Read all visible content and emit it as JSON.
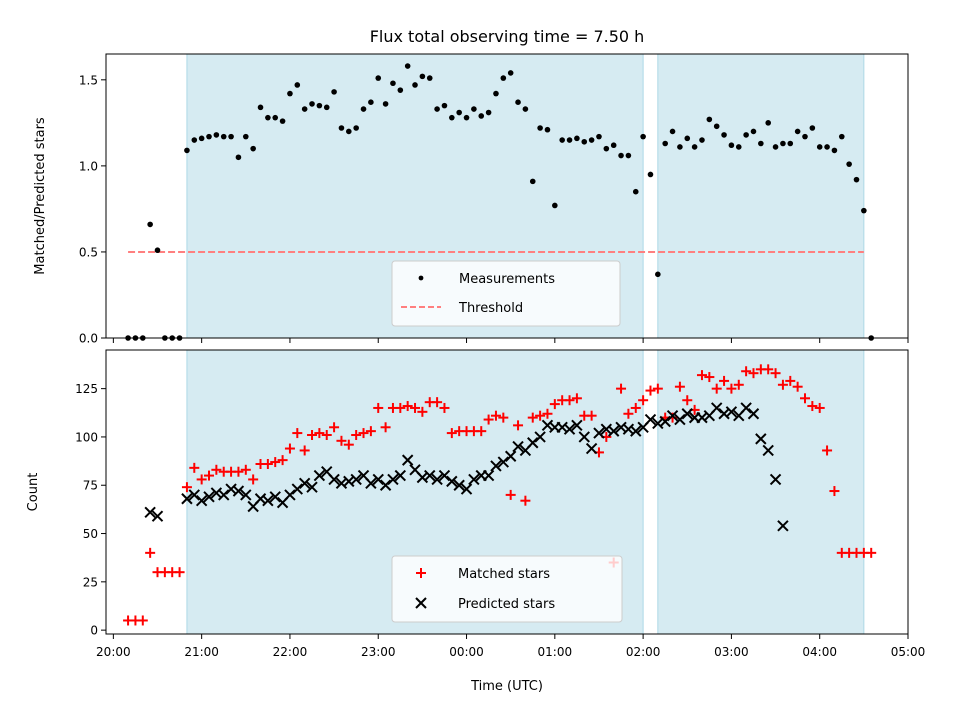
{
  "title": "Flux total observing time = 7.50 h",
  "chart_data": [
    {
      "type": "scatter",
      "ylabel": "Matched/Predicted stars",
      "xlabel": "",
      "ylim": [
        0,
        1.65
      ],
      "yticks": [
        0.0,
        0.5,
        1.0,
        1.5
      ],
      "ytick_labels": [
        "0.0",
        "0.5",
        "1.0",
        "1.5"
      ],
      "legend": "lower center",
      "series": [
        {
          "name": "Measurements",
          "marker": "dot",
          "color": "#000000",
          "x": [
            "20:10",
            "20:15",
            "20:20",
            "20:25",
            "20:30",
            "20:35",
            "20:40",
            "20:45",
            "20:50",
            "20:55",
            "21:00",
            "21:05",
            "21:10",
            "21:15",
            "21:20",
            "21:25",
            "21:30",
            "21:35",
            "21:40",
            "21:45",
            "21:50",
            "21:55",
            "22:00",
            "22:05",
            "22:10",
            "22:15",
            "22:20",
            "22:25",
            "22:30",
            "22:35",
            "22:40",
            "22:45",
            "22:50",
            "22:55",
            "23:00",
            "23:05",
            "23:10",
            "23:15",
            "23:20",
            "23:25",
            "23:30",
            "23:35",
            "23:40",
            "23:45",
            "23:50",
            "23:55",
            "00:00",
            "00:05",
            "00:10",
            "00:15",
            "00:20",
            "00:25",
            "00:30",
            "00:35",
            "00:40",
            "00:45",
            "00:50",
            "00:55",
            "01:00",
            "01:05",
            "01:10",
            "01:15",
            "01:20",
            "01:25",
            "01:30",
            "01:35",
            "01:40",
            "01:45",
            "01:50",
            "01:55",
            "02:00",
            "02:05",
            "02:10",
            "02:15",
            "02:20",
            "02:25",
            "02:30",
            "02:35",
            "02:40",
            "02:45",
            "02:50",
            "02:55",
            "03:00",
            "03:05",
            "03:10",
            "03:15",
            "03:20",
            "03:25",
            "03:30",
            "03:35",
            "03:40",
            "03:45",
            "03:50",
            "03:55",
            "04:00",
            "04:05",
            "04:10",
            "04:15",
            "04:20",
            "04:25",
            "04:30",
            "04:35"
          ],
          "y": [
            0.0,
            0.0,
            0.0,
            0.66,
            0.51,
            0.0,
            0.0,
            0.0,
            1.09,
            1.15,
            1.16,
            1.17,
            1.18,
            1.17,
            1.17,
            1.05,
            1.17,
            1.1,
            1.34,
            1.28,
            1.28,
            1.26,
            1.42,
            1.47,
            1.33,
            1.36,
            1.35,
            1.34,
            1.43,
            1.22,
            1.2,
            1.22,
            1.33,
            1.37,
            1.51,
            1.36,
            1.48,
            1.44,
            1.58,
            1.47,
            1.52,
            1.51,
            1.33,
            1.35,
            1.28,
            1.31,
            1.28,
            1.33,
            1.29,
            1.31,
            1.42,
            1.51,
            1.54,
            1.37,
            1.33,
            0.91,
            1.22,
            1.21,
            0.77,
            1.15,
            1.15,
            1.16,
            1.14,
            1.15,
            1.17,
            1.1,
            1.12,
            1.06,
            1.06,
            0.85,
            1.17,
            0.95,
            0.37,
            1.13,
            1.2,
            1.11,
            1.16,
            1.11,
            1.15,
            1.27,
            1.23,
            1.18,
            1.12,
            1.11,
            1.18,
            1.2,
            1.13,
            1.25,
            1.11,
            1.13,
            1.13,
            1.2,
            1.17,
            1.22,
            1.11,
            1.11,
            1.09,
            1.17,
            1.01,
            0.92,
            0.74,
            0.0
          ]
        },
        {
          "name": "Threshold",
          "marker": "dashed-line",
          "color": "#ff7f7f",
          "x": [
            "20:10",
            "04:30"
          ],
          "y": [
            0.5,
            0.5
          ]
        }
      ]
    },
    {
      "type": "scatter",
      "ylabel": "Count",
      "xlabel": "Time (UTC)",
      "ylim": [
        -2,
        145
      ],
      "yticks": [
        0,
        25,
        50,
        75,
        100,
        125
      ],
      "ytick_labels": [
        "0",
        "25",
        "50",
        "75",
        "100",
        "125"
      ],
      "legend": "lower center",
      "series": [
        {
          "name": "Matched stars",
          "marker": "plus",
          "color": "#ff0000",
          "x": [
            "20:10",
            "20:15",
            "20:20",
            "20:25",
            "20:30",
            "20:35",
            "20:40",
            "20:45",
            "20:50",
            "20:55",
            "21:00",
            "21:05",
            "21:10",
            "21:15",
            "21:20",
            "21:25",
            "21:30",
            "21:35",
            "21:40",
            "21:45",
            "21:50",
            "21:55",
            "22:00",
            "22:05",
            "22:10",
            "22:15",
            "22:20",
            "22:25",
            "22:30",
            "22:35",
            "22:40",
            "22:45",
            "22:50",
            "22:55",
            "23:00",
            "23:05",
            "23:10",
            "23:15",
            "23:20",
            "23:25",
            "23:30",
            "23:35",
            "23:40",
            "23:45",
            "23:50",
            "23:55",
            "00:00",
            "00:05",
            "00:10",
            "00:15",
            "00:20",
            "00:25",
            "00:30",
            "00:35",
            "00:40",
            "00:45",
            "00:50",
            "00:55",
            "01:00",
            "01:05",
            "01:10",
            "01:15",
            "01:20",
            "01:25",
            "01:30",
            "01:35",
            "01:40",
            "01:45",
            "01:50",
            "01:55",
            "02:00",
            "02:05",
            "02:10",
            "02:15",
            "02:20",
            "02:25",
            "02:30",
            "02:35",
            "02:40",
            "02:45",
            "02:50",
            "02:55",
            "03:00",
            "03:05",
            "03:10",
            "03:15",
            "03:20",
            "03:25",
            "03:30",
            "03:35",
            "03:40",
            "03:45",
            "03:50",
            "03:55",
            "04:00",
            "04:05",
            "04:10",
            "04:15",
            "04:20",
            "04:25",
            "04:30",
            "04:35"
          ],
          "y": [
            5,
            5,
            5,
            40,
            30,
            30,
            30,
            30,
            74,
            84,
            78,
            80,
            83,
            82,
            82,
            82,
            83,
            78,
            86,
            86,
            87,
            88,
            94,
            102,
            93,
            101,
            102,
            101,
            105,
            98,
            96,
            101,
            102,
            103,
            115,
            105,
            115,
            115,
            116,
            115,
            113,
            118,
            118,
            115,
            102,
            103,
            103,
            103,
            103,
            109,
            111,
            110,
            70,
            106,
            67,
            110,
            111,
            112,
            117,
            119,
            119,
            120,
            111,
            111,
            92,
            100,
            35,
            125,
            112,
            115,
            119,
            124,
            125,
            110,
            110,
            126,
            119,
            114,
            132,
            131,
            125,
            129,
            125,
            127,
            134,
            133,
            135,
            135,
            133,
            127,
            129,
            126,
            120,
            116,
            115,
            93,
            72,
            40,
            40,
            40,
            40,
            40
          ]
        },
        {
          "name": "Predicted stars",
          "marker": "x",
          "color": "#000000",
          "x": [
            "20:10",
            "20:15",
            "20:20",
            "20:25",
            "20:30",
            "20:35",
            "20:40",
            "20:45",
            "20:50",
            "20:55",
            "21:00",
            "21:05",
            "21:10",
            "21:15",
            "21:20",
            "21:25",
            "21:30",
            "21:35",
            "21:40",
            "21:45",
            "21:50",
            "21:55",
            "22:00",
            "22:05",
            "22:10",
            "22:15",
            "22:20",
            "22:25",
            "22:30",
            "22:35",
            "22:40",
            "22:45",
            "22:50",
            "22:55",
            "23:00",
            "23:05",
            "23:10",
            "23:15",
            "23:20",
            "23:25",
            "23:30",
            "23:35",
            "23:40",
            "23:45",
            "23:50",
            "23:55",
            "00:00",
            "00:05",
            "00:10",
            "00:15",
            "00:20",
            "00:25",
            "00:30",
            "00:35",
            "00:40",
            "00:45",
            "00:50",
            "00:55",
            "01:00",
            "01:05",
            "01:10",
            "01:15",
            "01:20",
            "01:25",
            "01:30",
            "01:35",
            "01:40",
            "01:45",
            "01:50",
            "01:55",
            "02:00",
            "02:05",
            "02:10",
            "02:15",
            "02:20",
            "02:25",
            "02:30",
            "02:35",
            "02:40",
            "02:45",
            "02:50",
            "02:55",
            "03:00",
            "03:05",
            "03:10",
            "03:15",
            "03:20",
            "03:25",
            "03:30",
            "03:35",
            "03:40",
            "03:45",
            "03:50",
            "03:55",
            "04:00",
            "04:05",
            "04:10",
            "04:15",
            "04:20",
            "04:25",
            "04:30",
            "04:35"
          ],
          "y": [
            null,
            null,
            null,
            61,
            59,
            null,
            null,
            null,
            68,
            70,
            67,
            69,
            71,
            70,
            73,
            72,
            70,
            64,
            68,
            67,
            69,
            66,
            70,
            73,
            76,
            74,
            80,
            82,
            78,
            76,
            77,
            78,
            80,
            76,
            78,
            75,
            78,
            80,
            88,
            83,
            79,
            80,
            78,
            80,
            77,
            75,
            73,
            78,
            80,
            80,
            85,
            87,
            90,
            95,
            93,
            97,
            100,
            106,
            105,
            105,
            104,
            106,
            100,
            94,
            102,
            104,
            103,
            105,
            104,
            103,
            105,
            109,
            107,
            108,
            111,
            109,
            112,
            110,
            110,
            111,
            115,
            112,
            113,
            111,
            115,
            112,
            99,
            93,
            78,
            54,
            null,
            null,
            null,
            null,
            null,
            null,
            null,
            null,
            null,
            null,
            null,
            null
          ]
        }
      ]
    }
  ],
  "shared_x": {
    "xlim": [
      "19:55",
      "05:00"
    ],
    "xticks": [
      "20:00",
      "21:00",
      "22:00",
      "23:00",
      "00:00",
      "01:00",
      "02:00",
      "03:00",
      "04:00",
      "05:00"
    ]
  },
  "observing_windows": [
    [
      "20:50",
      "02:00"
    ],
    [
      "02:10",
      "04:30"
    ]
  ],
  "colors": {
    "window_fill": "#add8e6",
    "window_edge": "#add8e6"
  }
}
